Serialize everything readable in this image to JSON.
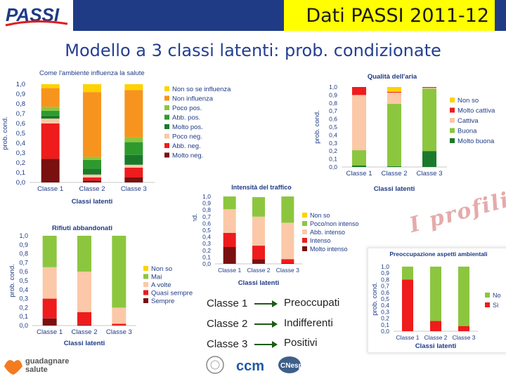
{
  "header": {
    "logo_text": "PASSI",
    "title": "Dati PASSI 2011-12"
  },
  "subtitle": "Modello a 3 classi latenti: prob. condizionate",
  "profili_text": "I profili",
  "colors": {
    "header_bar": "#1f3b85",
    "title_box": "#ffff00",
    "subtitle": "#243f91",
    "axis_text": "#1f3b85",
    "arrow": "#1a5c14"
  },
  "chart_data": [
    {
      "id": "c1",
      "type": "bar",
      "stacked": true,
      "title": "Come l'ambiente influenza la salute",
      "xlabel": "Classi latenti",
      "ylabel": "prob. cond.",
      "ylim": [
        0,
        1
      ],
      "yticks": [
        "0,0",
        "0,1",
        "0,2",
        "0,3",
        "0,4",
        "0,5",
        "0,6",
        "0,7",
        "0,8",
        "0,9",
        "1,0"
      ],
      "categories": [
        "Classe 1",
        "Classe 2",
        "Classe 3"
      ],
      "series": [
        {
          "name": "Molto neg.",
          "color": "#7a1010",
          "values": [
            0.24,
            0.02,
            0.05
          ]
        },
        {
          "name": "Abb. neg.",
          "color": "#ee1c1c",
          "values": [
            0.36,
            0.03,
            0.1
          ]
        },
        {
          "name": "Poco neg.",
          "color": "#fbc8a8",
          "values": [
            0.05,
            0.03,
            0.03
          ]
        },
        {
          "name": "Molto pos.",
          "color": "#1a7a2c",
          "values": [
            0.03,
            0.06,
            0.1
          ]
        },
        {
          "name": "Abb. pos.",
          "color": "#2e9a2e",
          "values": [
            0.05,
            0.09,
            0.13
          ]
        },
        {
          "name": "Poco pos.",
          "color": "#8cc63f",
          "values": [
            0.04,
            0.03,
            0.05
          ]
        },
        {
          "name": "Non influenza",
          "color": "#f7941d",
          "values": [
            0.19,
            0.66,
            0.48
          ]
        },
        {
          "name": "Non so se influenza",
          "color": "#ffd200",
          "values": [
            0.04,
            0.08,
            0.06
          ]
        }
      ]
    },
    {
      "id": "c2",
      "type": "bar",
      "stacked": true,
      "title": "Qualità dell'aria",
      "xlabel": "Classi latenti",
      "ylabel": "prob. cond.",
      "ylim": [
        0,
        1
      ],
      "yticks": [
        "0,0",
        "0,1",
        "0,2",
        "0,3",
        "0,4",
        "0,5",
        "0,6",
        "0,7",
        "0,8",
        "0,9",
        "1,0"
      ],
      "categories": [
        "Classe 1",
        "Classe 2",
        "Classe 3"
      ],
      "series": [
        {
          "name": "Molto buona",
          "color": "#1a7a2c",
          "values": [
            0.02,
            0.01,
            0.2
          ]
        },
        {
          "name": "Buona",
          "color": "#8cc63f",
          "values": [
            0.19,
            0.78,
            0.78
          ]
        },
        {
          "name": "Cattiva",
          "color": "#fbc8a8",
          "values": [
            0.69,
            0.14,
            0.01
          ]
        },
        {
          "name": "Molto cattiva",
          "color": "#ee1c1c",
          "values": [
            0.1,
            0.01,
            0.01
          ]
        },
        {
          "name": "Non so",
          "color": "#ffd200",
          "values": [
            0.0,
            0.06,
            0.0
          ]
        }
      ]
    },
    {
      "id": "c3",
      "type": "bar",
      "stacked": true,
      "title": "Intensità del traffico",
      "xlabel": "Classi latenti",
      "ylabel": "prob. cond.",
      "ylim": [
        0,
        1
      ],
      "yticks": [
        "0,0",
        "0,1",
        "0,2",
        "0,3",
        "0,4",
        "0,5",
        "0,6",
        "0,7",
        "0,8",
        "0,9",
        "1,0"
      ],
      "categories": [
        "Classe 1",
        "Classe 2",
        "Classe 3"
      ],
      "series": [
        {
          "name": "Molto intenso",
          "color": "#7a1010",
          "values": [
            0.25,
            0.07,
            0.01
          ]
        },
        {
          "name": "Intenso",
          "color": "#ee1c1c",
          "values": [
            0.21,
            0.2,
            0.06
          ]
        },
        {
          "name": "Abb. intenso",
          "color": "#fbc8a8",
          "values": [
            0.35,
            0.43,
            0.54
          ]
        },
        {
          "name": "Poco/non intenso",
          "color": "#8cc63f",
          "values": [
            0.19,
            0.29,
            0.39
          ]
        },
        {
          "name": "Non so",
          "color": "#ffd200",
          "values": [
            0.0,
            0.0,
            0.0
          ]
        }
      ]
    },
    {
      "id": "c4",
      "type": "bar",
      "stacked": true,
      "title": "Rifiuti abbandonati",
      "xlabel": "Classi latenti",
      "ylabel": "prob. cond.",
      "ylim": [
        0,
        1
      ],
      "yticks": [
        "0,0",
        "0,1",
        "0,2",
        "0,3",
        "0,4",
        "0,5",
        "0,6",
        "0,7",
        "0,8",
        "0,9",
        "1,0"
      ],
      "categories": [
        "Classe 1",
        "Classe 2",
        "Classe 3"
      ],
      "series": [
        {
          "name": "Sempre",
          "color": "#7a1010",
          "values": [
            0.08,
            0.01,
            0.0
          ]
        },
        {
          "name": "Quasi sempre",
          "color": "#ee1c1c",
          "values": [
            0.22,
            0.14,
            0.02
          ]
        },
        {
          "name": "A volte",
          "color": "#fbc8a8",
          "values": [
            0.35,
            0.45,
            0.18
          ]
        },
        {
          "name": "Mai",
          "color": "#8cc63f",
          "values": [
            0.35,
            0.4,
            0.8
          ]
        },
        {
          "name": "Non so",
          "color": "#ffd200",
          "values": [
            0.0,
            0.0,
            0.0
          ]
        }
      ]
    },
    {
      "id": "c5",
      "type": "bar",
      "stacked": true,
      "title": "Preoccupazione aspetti ambientali",
      "xlabel": "Classi latenti",
      "ylabel": "prob. cond.",
      "ylim": [
        0,
        1
      ],
      "yticks": [
        "0,0",
        "0,1",
        "0,2",
        "0,3",
        "0,4",
        "0,5",
        "0,6",
        "0,7",
        "0,8",
        "0,9",
        "1,0"
      ],
      "categories": [
        "Classe 1",
        "Classe 2",
        "Classe 3"
      ],
      "series": [
        {
          "name": "Sì",
          "color": "#ee1c1c",
          "values": [
            0.8,
            0.16,
            0.08
          ]
        },
        {
          "name": "No",
          "color": "#8cc63f",
          "values": [
            0.2,
            0.84,
            0.92
          ]
        }
      ]
    }
  ],
  "class_mapping": [
    {
      "classe": "Classe 1",
      "profile": "Preoccupati"
    },
    {
      "classe": "Classe 2",
      "profile": "Indifferenti"
    },
    {
      "classe": "Classe 3",
      "profile": "Positivi"
    }
  ],
  "footer": {
    "guadagnare_line1": "guadagnare",
    "guadagnare_line2": "salute",
    "ccm_text": "ccm",
    "cnesps_text": "CNesps"
  }
}
